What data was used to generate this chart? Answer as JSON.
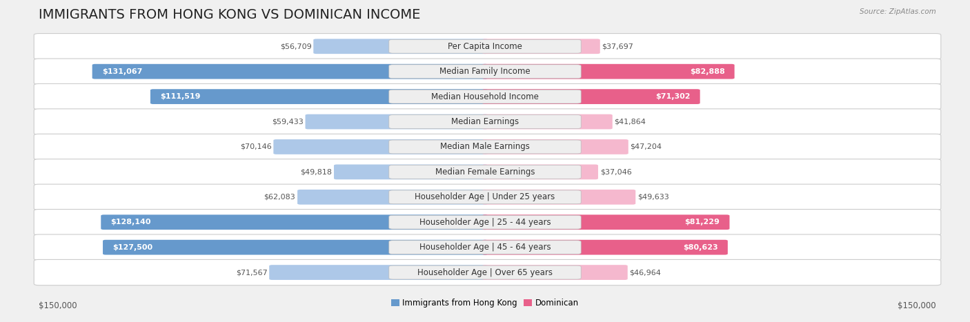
{
  "title": "IMMIGRANTS FROM HONG KONG VS DOMINICAN INCOME",
  "source": "Source: ZipAtlas.com",
  "categories": [
    "Per Capita Income",
    "Median Family Income",
    "Median Household Income",
    "Median Earnings",
    "Median Male Earnings",
    "Median Female Earnings",
    "Householder Age | Under 25 years",
    "Householder Age | 25 - 44 years",
    "Householder Age | 45 - 64 years",
    "Householder Age | Over 65 years"
  ],
  "hk_values": [
    56709,
    131067,
    111519,
    59433,
    70146,
    49818,
    62083,
    128140,
    127500,
    71567
  ],
  "dom_values": [
    37697,
    82888,
    71302,
    41864,
    47204,
    37046,
    49633,
    81229,
    80623,
    46964
  ],
  "hk_color_full": "#6699cc",
  "hk_color_light": "#adc8e8",
  "dom_color_full": "#e8608a",
  "dom_color_light": "#f5b8ce",
  "max_val": 150000,
  "xlabel_left": "$150,000",
  "xlabel_right": "$150,000",
  "legend_hk": "Immigrants from Hong Kong",
  "legend_dom": "Dominican",
  "background_color": "#f0f0f0",
  "row_bg": "#ffffff",
  "title_fontsize": 14,
  "label_fontsize": 8.5,
  "value_fontsize": 8.0,
  "hk_full_threshold": 100000,
  "dom_full_threshold": 65000
}
